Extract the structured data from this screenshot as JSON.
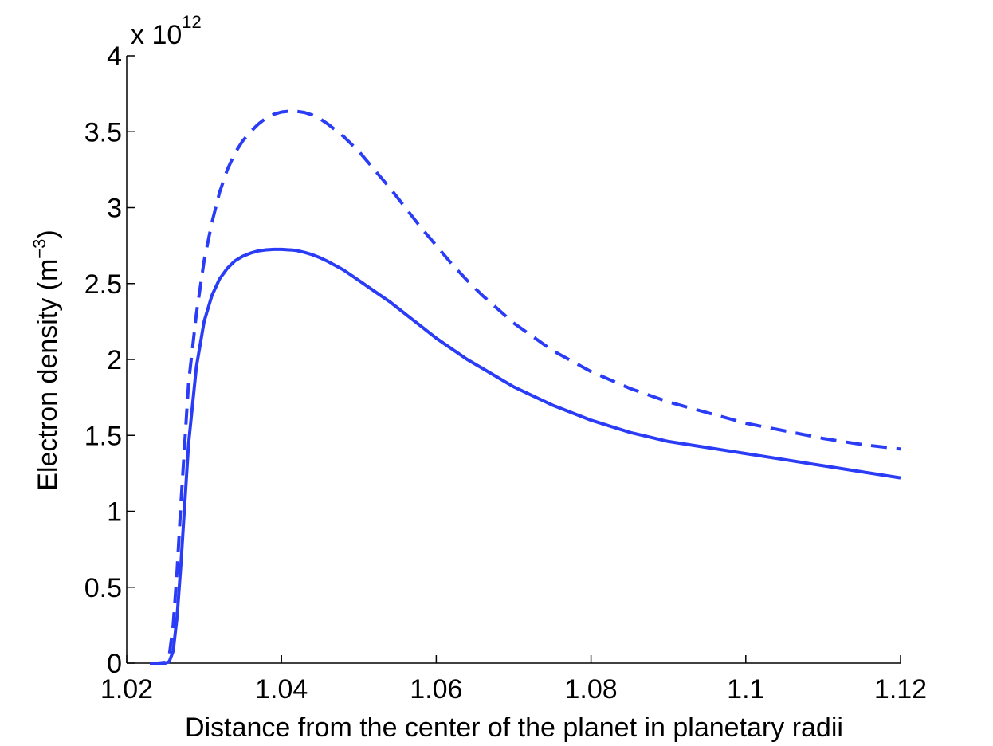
{
  "chart_data": {
    "type": "line",
    "title": "",
    "xlabel": "Distance from the center of the planet in planetary radii",
    "ylabel": "Electron density (m",
    "ylabel_exponent": "−3",
    "ylabel_close": ")",
    "y_multiplier_prefix": "x 10",
    "y_multiplier_exponent": "12",
    "xlim": [
      1.02,
      1.12
    ],
    "ylim": [
      0,
      4
    ],
    "xticks": [
      1.02,
      1.04,
      1.06,
      1.08,
      1.1,
      1.12
    ],
    "xtick_labels": [
      "1.02",
      "1.04",
      "1.06",
      "1.08",
      "1.1",
      "1.12"
    ],
    "yticks": [
      0,
      0.5,
      1,
      1.5,
      2,
      2.5,
      3,
      3.5,
      4
    ],
    "ytick_labels": [
      "0",
      "0.5",
      "1",
      "1.5",
      "2",
      "2.5",
      "3",
      "3.5",
      "4"
    ],
    "grid": false,
    "legend": "none",
    "series": [
      {
        "name": "dashed",
        "style": "dashed",
        "color": "#2a3cf5",
        "x": [
          1.023,
          1.024,
          1.025,
          1.0255,
          1.026,
          1.0265,
          1.027,
          1.0275,
          1.028,
          1.029,
          1.03,
          1.031,
          1.032,
          1.033,
          1.034,
          1.035,
          1.036,
          1.037,
          1.038,
          1.039,
          1.04,
          1.041,
          1.0415,
          1.042,
          1.043,
          1.044,
          1.045,
          1.046,
          1.048,
          1.05,
          1.052,
          1.054,
          1.056,
          1.058,
          1.06,
          1.062,
          1.064,
          1.066,
          1.068,
          1.07,
          1.075,
          1.08,
          1.085,
          1.09,
          1.095,
          1.1,
          1.105,
          1.11,
          1.115,
          1.12
        ],
        "y": [
          0,
          0,
          0.005,
          0.05,
          0.25,
          0.6,
          1.05,
          1.45,
          1.85,
          2.3,
          2.65,
          2.9,
          3.1,
          3.25,
          3.36,
          3.44,
          3.5,
          3.55,
          3.59,
          3.615,
          3.63,
          3.635,
          3.635,
          3.634,
          3.627,
          3.61,
          3.585,
          3.55,
          3.47,
          3.37,
          3.25,
          3.13,
          3.0,
          2.87,
          2.75,
          2.63,
          2.52,
          2.42,
          2.33,
          2.24,
          2.06,
          1.92,
          1.81,
          1.72,
          1.65,
          1.58,
          1.53,
          1.48,
          1.44,
          1.41
        ]
      },
      {
        "name": "solid",
        "style": "solid",
        "color": "#2a3cf5",
        "x": [
          1.023,
          1.024,
          1.025,
          1.0255,
          1.026,
          1.0265,
          1.027,
          1.0275,
          1.028,
          1.029,
          1.03,
          1.031,
          1.032,
          1.033,
          1.034,
          1.035,
          1.036,
          1.037,
          1.038,
          1.039,
          1.04,
          1.041,
          1.0415,
          1.042,
          1.043,
          1.044,
          1.045,
          1.046,
          1.048,
          1.05,
          1.052,
          1.054,
          1.056,
          1.058,
          1.06,
          1.062,
          1.064,
          1.066,
          1.068,
          1.07,
          1.075,
          1.08,
          1.085,
          1.09,
          1.095,
          1.1,
          1.105,
          1.11,
          1.115,
          1.12
        ],
        "y": [
          0,
          0,
          0,
          0.01,
          0.08,
          0.3,
          0.65,
          1.05,
          1.45,
          1.95,
          2.25,
          2.42,
          2.53,
          2.6,
          2.65,
          2.68,
          2.7,
          2.715,
          2.722,
          2.725,
          2.725,
          2.722,
          2.72,
          2.717,
          2.705,
          2.69,
          2.67,
          2.645,
          2.59,
          2.52,
          2.45,
          2.38,
          2.3,
          2.22,
          2.14,
          2.07,
          2.0,
          1.94,
          1.88,
          1.82,
          1.7,
          1.6,
          1.52,
          1.46,
          1.42,
          1.38,
          1.34,
          1.3,
          1.26,
          1.22
        ]
      }
    ]
  }
}
